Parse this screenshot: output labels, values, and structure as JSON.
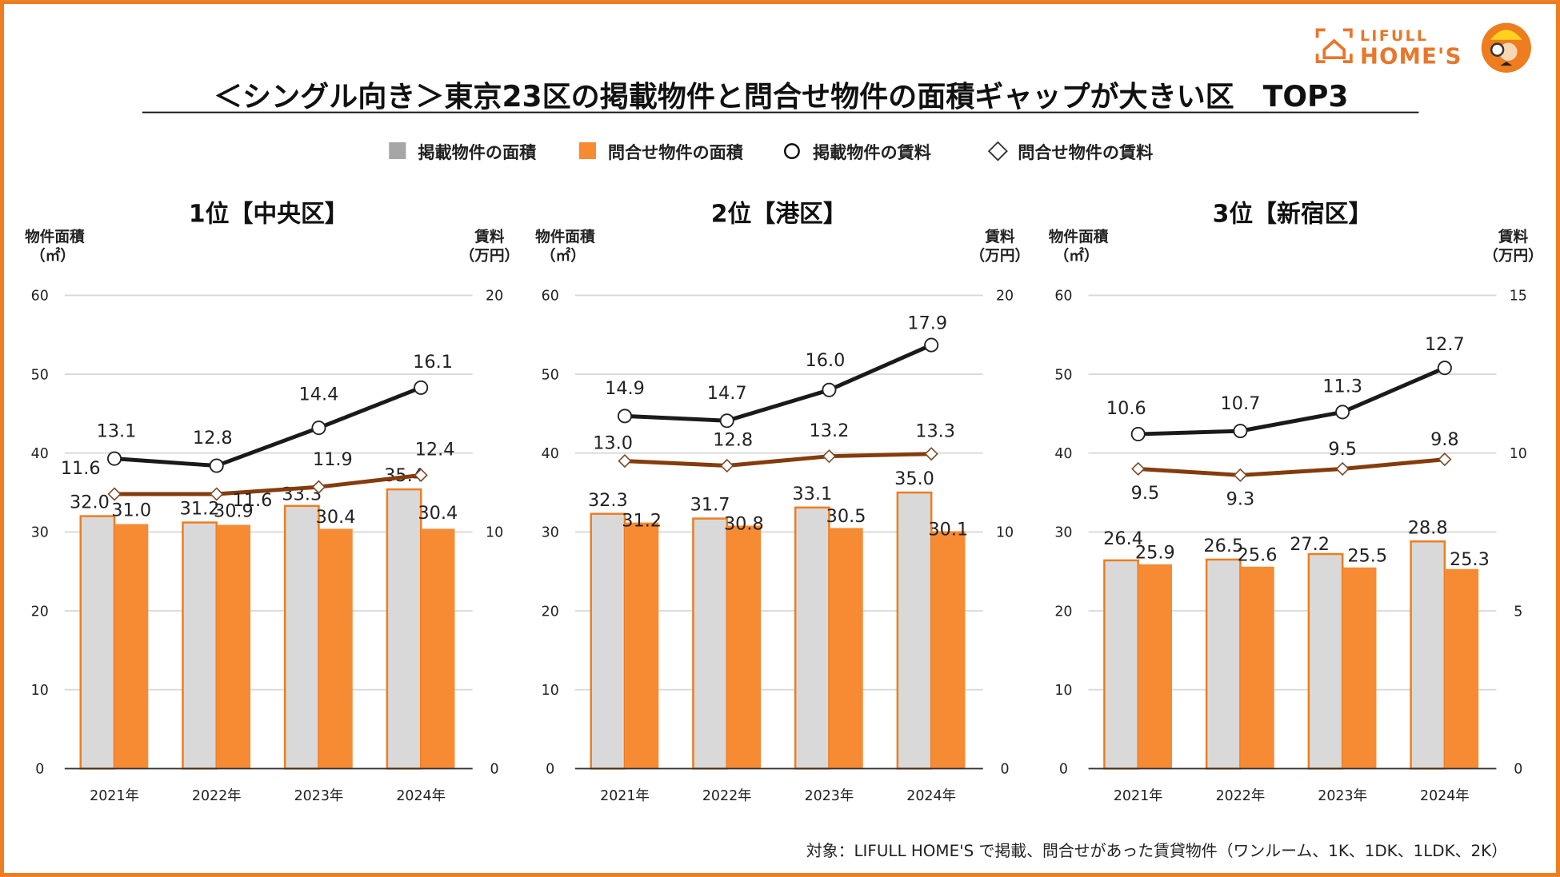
{
  "title": "＜シングル向き＞東京23区の掲載物件と問合せ物件の面積ギャップが大きい区　TOP3",
  "logo": {
    "line1": "LIFULL",
    "line2": "HOME'S"
  },
  "legend": [
    {
      "label": "掲載物件の面積",
      "marker": "gray-square"
    },
    {
      "label": "問合せ物件の面積",
      "marker": "orange-square"
    },
    {
      "label": "掲載物件の賃料",
      "marker": "circle"
    },
    {
      "label": "問合せ物件の賃料",
      "marker": "diamond"
    }
  ],
  "colors": {
    "border": "#ed7d1f",
    "listed_area": "#d9d9d9",
    "inquiry_area": "#f68b33",
    "listed_rent": "#1a1a1a",
    "inquiry_rent": "#843c0c",
    "grid": "#d9d9d9"
  },
  "footnote": "対象：LIFULL HOME'S で掲載、問合せがあった賃貸物件（ワンルーム、1K、1DK、1LDK、2K）",
  "chart_data": [
    {
      "type": "bar+line",
      "title": "1位【中央区】",
      "ylabel_left": [
        "物件面積",
        "（㎡）"
      ],
      "ylabel_right": [
        "賃料",
        "（万円）"
      ],
      "categories": [
        "2021年",
        "2022年",
        "2023年",
        "2024年"
      ],
      "ylim_left": [
        0,
        60
      ],
      "yticks_left": [
        "0",
        "10",
        "20",
        "30",
        "40",
        "50",
        "60"
      ],
      "ylim_right": [
        0,
        20
      ],
      "yticks_right": [
        "0",
        "10",
        "20"
      ],
      "grid": true,
      "series": [
        {
          "name": "掲載物件の面積",
          "type": "bar",
          "axis": "left",
          "values": [
            32.0,
            31.2,
            33.3,
            35.4
          ],
          "labels": [
            "32.0",
            "31.2",
            "33.3",
            "35.4"
          ]
        },
        {
          "name": "問合せ物件の面積",
          "type": "bar",
          "axis": "left",
          "values": [
            31.0,
            30.9,
            30.4,
            30.4
          ],
          "labels": [
            "31.0",
            "30.9",
            "30.4",
            "30.4"
          ]
        },
        {
          "name": "掲載物件の賃料",
          "type": "line",
          "axis": "right",
          "values": [
            13.1,
            12.8,
            14.4,
            16.1
          ],
          "labels": [
            "13.1",
            "12.8",
            "14.4",
            "16.1"
          ]
        },
        {
          "name": "問合せ物件の賃料",
          "type": "line",
          "axis": "right",
          "values": [
            11.6,
            11.6,
            11.9,
            12.4
          ],
          "labels": [
            "11.6",
            "11.6",
            "11.9",
            "12.4"
          ]
        }
      ]
    },
    {
      "type": "bar+line",
      "title": "2位【港区】",
      "ylabel_left": [
        "物件面積",
        "（㎡）"
      ],
      "ylabel_right": [
        "賃料",
        "（万円）"
      ],
      "categories": [
        "2021年",
        "2022年",
        "2023年",
        "2024年"
      ],
      "ylim_left": [
        0,
        60
      ],
      "yticks_left": [
        "0",
        "10",
        "20",
        "30",
        "40",
        "50",
        "60"
      ],
      "ylim_right": [
        0,
        20
      ],
      "yticks_right": [
        "0",
        "10",
        "20"
      ],
      "grid": true,
      "series": [
        {
          "name": "掲載物件の面積",
          "type": "bar",
          "axis": "left",
          "values": [
            32.3,
            31.7,
            33.1,
            35.0
          ],
          "labels": [
            "32.3",
            "31.7",
            "33.1",
            "35.0"
          ]
        },
        {
          "name": "問合せ物件の面積",
          "type": "bar",
          "axis": "left",
          "values": [
            31.2,
            30.8,
            30.5,
            30.1
          ],
          "labels": [
            "31.2",
            "30.8",
            "30.5",
            "30.1"
          ]
        },
        {
          "name": "掲載物件の賃料",
          "type": "line",
          "axis": "right",
          "values": [
            14.9,
            14.7,
            16.0,
            17.9
          ],
          "labels": [
            "14.9",
            "14.7",
            "16.0",
            "17.9"
          ]
        },
        {
          "name": "問合せ物件の賃料",
          "type": "line",
          "axis": "right",
          "values": [
            13.0,
            12.8,
            13.2,
            13.3
          ],
          "labels": [
            "13.0",
            "12.8",
            "13.2",
            "13.3"
          ]
        }
      ]
    },
    {
      "type": "bar+line",
      "title": "3位【新宿区】",
      "ylabel_left": [
        "物件面積",
        "（㎡）"
      ],
      "ylabel_right": [
        "賃料",
        "（万円）"
      ],
      "categories": [
        "2021年",
        "2022年",
        "2023年",
        "2024年"
      ],
      "ylim_left": [
        0,
        60
      ],
      "yticks_left": [
        "0",
        "10",
        "20",
        "30",
        "40",
        "50",
        "60"
      ],
      "ylim_right": [
        0,
        15
      ],
      "yticks_right": [
        "0",
        "5",
        "10",
        "15"
      ],
      "grid": true,
      "series": [
        {
          "name": "掲載物件の面積",
          "type": "bar",
          "axis": "left",
          "values": [
            26.4,
            26.5,
            27.2,
            28.8
          ],
          "labels": [
            "26.4",
            "26.5",
            "27.2",
            "28.8"
          ]
        },
        {
          "name": "問合せ物件の面積",
          "type": "bar",
          "axis": "left",
          "values": [
            25.9,
            25.6,
            25.5,
            25.3
          ],
          "labels": [
            "25.9",
            "25.6",
            "25.5",
            "25.3"
          ]
        },
        {
          "name": "掲載物件の賃料",
          "type": "line",
          "axis": "right",
          "values": [
            10.6,
            10.7,
            11.3,
            12.7
          ],
          "labels": [
            "10.6",
            "10.7",
            "11.3",
            "12.7"
          ]
        },
        {
          "name": "問合せ物件の賃料",
          "type": "line",
          "axis": "right",
          "values": [
            9.5,
            9.3,
            9.5,
            9.8
          ],
          "labels": [
            "9.5",
            "9.3",
            "9.5",
            "9.8"
          ]
        }
      ]
    }
  ]
}
